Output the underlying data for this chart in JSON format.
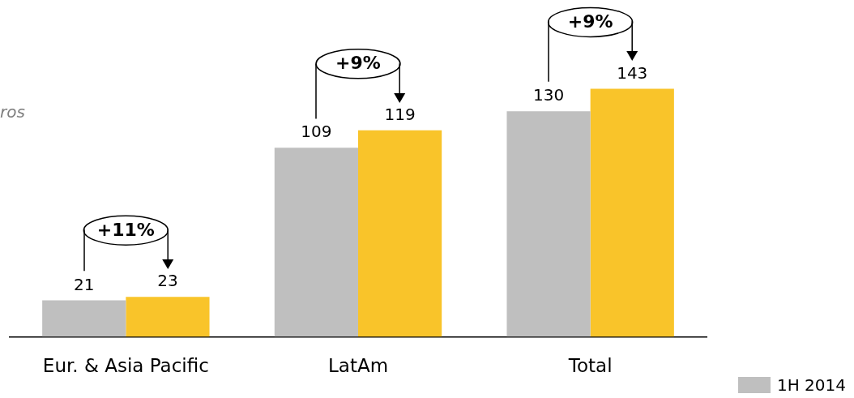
{
  "chart_data": {
    "type": "bar",
    "categories": [
      "Eur. & Asia Pacific",
      "LatAm",
      "Total"
    ],
    "series": [
      {
        "name": "1H 2014",
        "color": "#bfbfbf",
        "values": [
          21,
          109,
          130
        ]
      },
      {
        "color": "#f9c42a",
        "values": [
          23,
          119,
          143
        ]
      }
    ],
    "data_labels": true,
    "grid": false,
    "legend": "bottom right",
    "annotations": [
      "ros",
      "+11%",
      "+9%",
      "+9%"
    ]
  }
}
